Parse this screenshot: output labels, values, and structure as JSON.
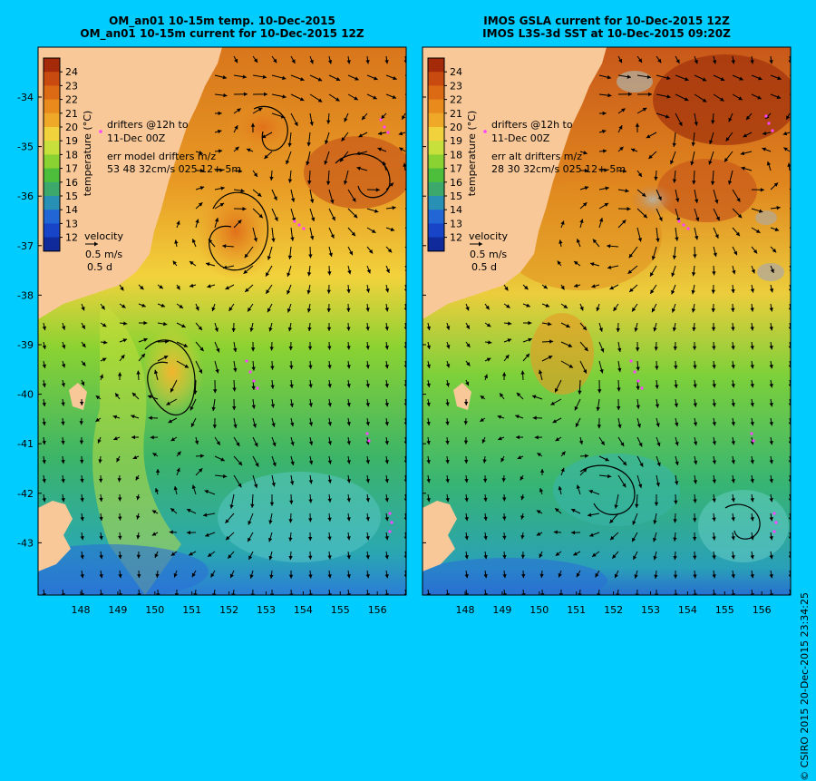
{
  "panels": [
    {
      "title_line1": "OM_an01 10-15m temp. 10-Dec-2015",
      "title_line2": "OM_an01 10-15m current for 10-Dec-2015 12Z",
      "drifters_line1": "drifters @12h to",
      "drifters_line2": "11-Dec 00Z",
      "err_line1": "err model drifters m/z",
      "err_line2": "53 48 32cm/s 025 12+-5m",
      "velocity_label": "velocity",
      "velocity_scale": "0.5 m/s",
      "velocity_time": "0.5 d"
    },
    {
      "title_line1": "IMOS GSLA current for 10-Dec-2015 12Z",
      "title_line2": "IMOS L3S-3d SST at 10-Dec-2015 09:20Z",
      "drifters_line1": "drifters @12h to",
      "drifters_line2": "11-Dec 00Z",
      "err_line1": "err alt drifters m/z",
      "err_line2": "28 30 32cm/s 025 12+-5m",
      "velocity_label": "velocity",
      "velocity_scale": "0.5 m/s",
      "velocity_time": "0.5 d"
    }
  ],
  "colorbar": {
    "label": "temperature (°C)",
    "ticks": [
      "24",
      "23",
      "22",
      "21",
      "20",
      "19",
      "18",
      "17",
      "16",
      "15",
      "14",
      "13",
      "12"
    ],
    "colors": [
      "#a52a0a",
      "#c84a10",
      "#dc6a14",
      "#e88a1c",
      "#f0a828",
      "#f2d23c",
      "#c8e03c",
      "#8ad232",
      "#4cbe3c",
      "#3ca86c",
      "#2890b4",
      "#2266d6",
      "#1844c8",
      "#102a9c"
    ]
  },
  "axes": {
    "lat_ticks": [
      "-34",
      "-35",
      "-36",
      "-37",
      "-38",
      "-39",
      "-40",
      "-41",
      "-42",
      "-43"
    ],
    "lon_ticks": [
      "148",
      "149",
      "150",
      "151",
      "152",
      "153",
      "154",
      "155",
      "156"
    ]
  },
  "copyright": "© CSIRO 2015   20-Dec-2015 23:34:25",
  "colors": {
    "background": "#00ccff",
    "land": "#f8c898",
    "drifters": "#ff44ff"
  }
}
